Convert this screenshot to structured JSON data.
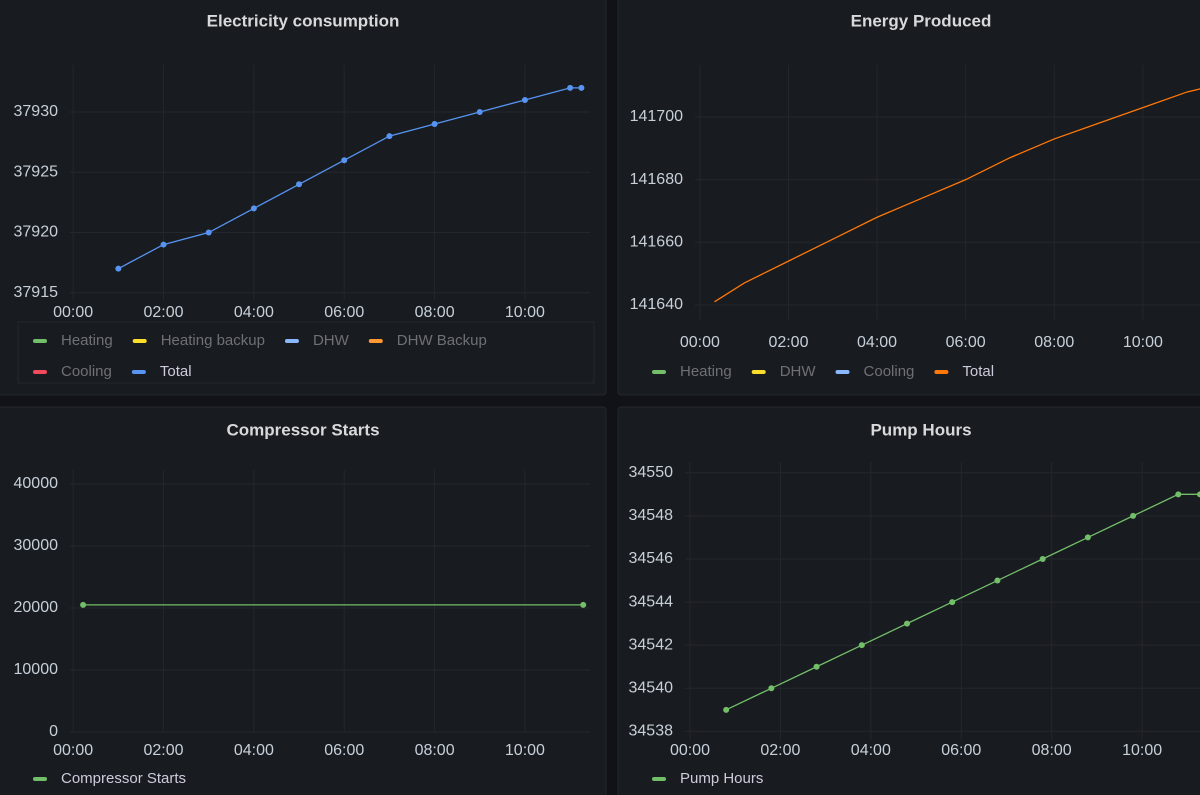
{
  "chart_data": [
    {
      "type": "line",
      "title": "Electricity consumption",
      "grid": true,
      "points": true,
      "legend": "bottom",
      "x": [
        1,
        2,
        3,
        4,
        5,
        6,
        7,
        8,
        9,
        10,
        11,
        11.25
      ],
      "xlim": [
        -0.07,
        11.44
      ],
      "xticks": [
        {
          "value": 0,
          "label": "00:00"
        },
        {
          "value": 2,
          "label": "02:00"
        },
        {
          "value": 4,
          "label": "04:00"
        },
        {
          "value": 6,
          "label": "06:00"
        },
        {
          "value": 8,
          "label": "08:00"
        },
        {
          "value": 10,
          "label": "10:00"
        }
      ],
      "ylim": [
        37914.4,
        37933.9
      ],
      "yticks": [
        37915,
        37920,
        37925,
        37930
      ],
      "series": [
        {
          "name": "Heating",
          "color": "#73bf69",
          "values": [
            null,
            null,
            null,
            null,
            null,
            null,
            null,
            null,
            null,
            null,
            null,
            null
          ]
        },
        {
          "name": "Heating backup",
          "color": "#fade2a",
          "values": [
            null,
            null,
            null,
            null,
            null,
            null,
            null,
            null,
            null,
            null,
            null,
            null
          ]
        },
        {
          "name": "DHW",
          "color": "#8ab8ff",
          "values": [
            null,
            null,
            null,
            null,
            null,
            null,
            null,
            null,
            null,
            null,
            null,
            null
          ]
        },
        {
          "name": "DHW Backup",
          "color": "#ff9830",
          "values": [
            null,
            null,
            null,
            null,
            null,
            null,
            null,
            null,
            null,
            null,
            null,
            null
          ]
        },
        {
          "name": "Cooling",
          "color": "#f2495c",
          "values": [
            null,
            null,
            null,
            null,
            null,
            null,
            null,
            null,
            null,
            null,
            null,
            null
          ]
        },
        {
          "name": "Total",
          "color": "#5794f2",
          "values": [
            37917,
            37919,
            37920,
            37922,
            37924,
            37926,
            37928,
            37929,
            37930,
            37931,
            37932,
            37932
          ]
        }
      ]
    },
    {
      "type": "line",
      "title": "Energy Produced",
      "grid": true,
      "points": false,
      "legend": "bottom",
      "x": [
        0.33,
        1,
        2,
        3,
        4,
        5,
        6,
        7,
        8,
        9,
        10,
        11,
        11.3
      ],
      "xlim": [
        -0.11,
        11.29
      ],
      "xticks": [
        {
          "value": 0,
          "label": "00:00"
        },
        {
          "value": 2,
          "label": "02:00"
        },
        {
          "value": 4,
          "label": "04:00"
        },
        {
          "value": 6,
          "label": "06:00"
        },
        {
          "value": 8,
          "label": "08:00"
        },
        {
          "value": 10,
          "label": "10:00"
        }
      ],
      "ylim": [
        141635.2,
        141716.6
      ],
      "yticks": [
        141640,
        141660,
        141680,
        141700
      ],
      "series": [
        {
          "name": "Heating",
          "color": "#73bf69",
          "values": [
            null,
            null,
            null,
            null,
            null,
            null,
            null,
            null,
            null,
            null,
            null,
            null,
            null
          ]
        },
        {
          "name": "DHW",
          "color": "#fade2a",
          "values": [
            null,
            null,
            null,
            null,
            null,
            null,
            null,
            null,
            null,
            null,
            null,
            null,
            null
          ]
        },
        {
          "name": "Cooling",
          "color": "#8ab8ff",
          "values": [
            null,
            null,
            null,
            null,
            null,
            null,
            null,
            null,
            null,
            null,
            null,
            null,
            null
          ]
        },
        {
          "name": "Total",
          "color": "#ff780a",
          "values": [
            141641,
            141647,
            141654,
            141661,
            141668,
            141674,
            141680,
            141687,
            141693,
            141698,
            141703,
            141708,
            141709
          ]
        }
      ]
    },
    {
      "type": "line",
      "title": "Compressor Starts",
      "grid": true,
      "points": true,
      "legend": "bottom",
      "x": [
        0.22,
        11.29
      ],
      "xlim": [
        -0.07,
        11.44
      ],
      "xticks": [
        {
          "value": 0,
          "label": "00:00"
        },
        {
          "value": 2,
          "label": "02:00"
        },
        {
          "value": 4,
          "label": "04:00"
        },
        {
          "value": 6,
          "label": "06:00"
        },
        {
          "value": 8,
          "label": "08:00"
        },
        {
          "value": 10,
          "label": "10:00"
        }
      ],
      "ylim": [
        0,
        42260
      ],
      "yticks": [
        0,
        10000,
        20000,
        30000,
        40000
      ],
      "series": [
        {
          "name": "Compressor Starts",
          "color": "#73bf69",
          "values": [
            20500,
            20500
          ]
        }
      ]
    },
    {
      "type": "line",
      "title": "Pump Hours",
      "grid": true,
      "points": true,
      "legend": "bottom",
      "x": [
        0.8,
        1.8,
        2.8,
        3.8,
        4.8,
        5.8,
        6.8,
        7.8,
        8.8,
        9.8,
        10.8,
        11.28
      ],
      "xlim": [
        -0.11,
        11.28
      ],
      "xticks": [
        {
          "value": 0,
          "label": "00:00"
        },
        {
          "value": 2,
          "label": "02:00"
        },
        {
          "value": 4,
          "label": "04:00"
        },
        {
          "value": 6,
          "label": "06:00"
        },
        {
          "value": 8,
          "label": "08:00"
        },
        {
          "value": 10,
          "label": "10:00"
        }
      ],
      "ylim": [
        34537.6,
        34550.5
      ],
      "yticks": [
        34538,
        34540,
        34542,
        34544,
        34546,
        34548,
        34550
      ],
      "series": [
        {
          "name": "Pump Hours",
          "color": "#73bf69",
          "values": [
            34539,
            34540,
            34541,
            34542,
            34543,
            34544,
            34545,
            34546,
            34547,
            34548,
            34549,
            34549
          ]
        }
      ]
    }
  ]
}
